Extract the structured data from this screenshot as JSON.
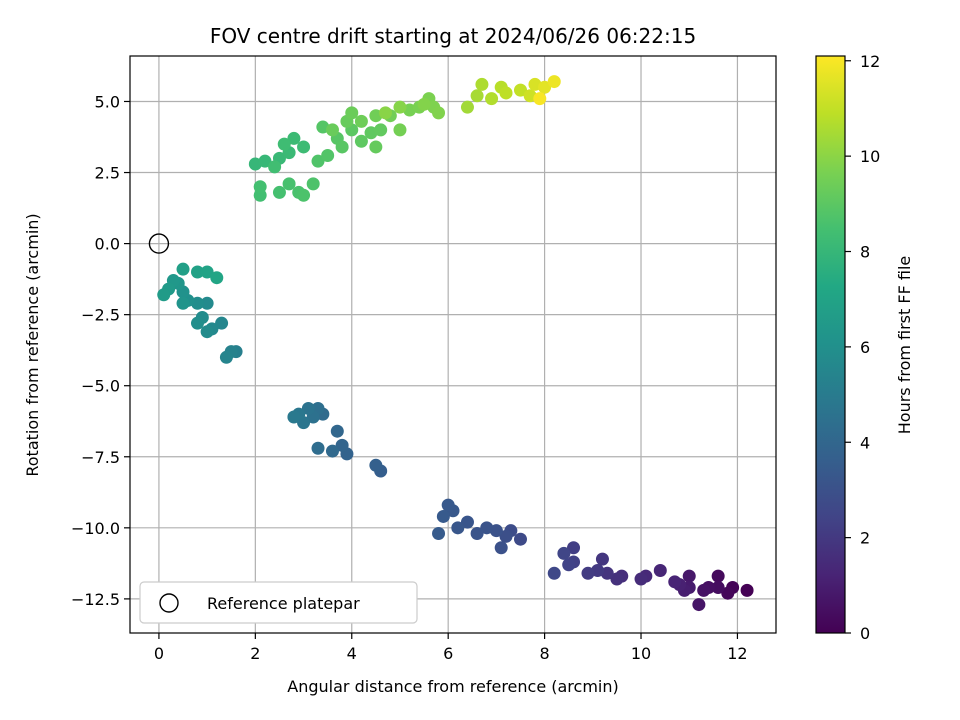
{
  "chart_data": {
    "type": "scatter",
    "title": "FOV centre drift starting at 2024/06/26 06:22:15",
    "xlabel": "Angular distance from reference (arcmin)",
    "ylabel": "Rotation from reference (arcmin)",
    "xlim": [
      -0.6,
      12.8
    ],
    "ylim": [
      -13.7,
      6.6
    ],
    "xticks": [
      0,
      2,
      4,
      6,
      8,
      10,
      12
    ],
    "yticks": [
      5.0,
      2.5,
      0.0,
      -2.5,
      -5.0,
      -7.5,
      -10.0,
      -12.5
    ],
    "xtick_labels": [
      "0",
      "2",
      "4",
      "6",
      "8",
      "10",
      "12"
    ],
    "ytick_labels": [
      "5.0",
      "2.5",
      "0.0",
      "−2.5",
      "−5.0",
      "−7.5",
      "−10.0",
      "−12.5"
    ],
    "grid": true,
    "legend": {
      "placement": "lower-left",
      "entries": [
        "Reference platepar"
      ]
    },
    "reference_point": {
      "x": 0,
      "y": 0,
      "label": "Reference platepar"
    },
    "colorbar": {
      "label": "Hours from first FF file",
      "range": [
        0,
        12.1
      ],
      "ticks": [
        0,
        2,
        4,
        6,
        8,
        10,
        12
      ],
      "tick_labels": [
        "0",
        "2",
        "4",
        "6",
        "8",
        "10",
        "12"
      ],
      "colormap": "viridis"
    },
    "points": [
      [
        12.2,
        -12.2,
        0.0
      ],
      [
        11.9,
        -12.1,
        0.1
      ],
      [
        11.8,
        -12.3,
        0.2
      ],
      [
        11.6,
        -11.7,
        0.3
      ],
      [
        11.6,
        -12.1,
        0.4
      ],
      [
        11.4,
        -12.1,
        0.5
      ],
      [
        11.3,
        -12.2,
        0.6
      ],
      [
        11.2,
        -12.7,
        0.7
      ],
      [
        11.0,
        -11.7,
        0.8
      ],
      [
        11.0,
        -12.1,
        0.9
      ],
      [
        10.9,
        -12.2,
        1.0
      ],
      [
        10.8,
        -12.0,
        1.1
      ],
      [
        10.7,
        -11.9,
        1.2
      ],
      [
        10.4,
        -11.5,
        1.3
      ],
      [
        10.1,
        -11.7,
        1.4
      ],
      [
        10.0,
        -11.8,
        1.5
      ],
      [
        9.6,
        -11.7,
        1.6
      ],
      [
        9.5,
        -11.8,
        1.7
      ],
      [
        9.3,
        -11.6,
        1.8
      ],
      [
        9.2,
        -11.1,
        1.9
      ],
      [
        9.1,
        -11.5,
        2.0
      ],
      [
        8.9,
        -11.6,
        2.1
      ],
      [
        8.6,
        -10.7,
        2.2
      ],
      [
        8.6,
        -11.2,
        2.3
      ],
      [
        8.5,
        -11.3,
        2.4
      ],
      [
        8.4,
        -10.9,
        2.5
      ],
      [
        8.2,
        -11.6,
        2.6
      ],
      [
        7.5,
        -10.4,
        2.7
      ],
      [
        7.3,
        -10.1,
        2.8
      ],
      [
        7.2,
        -10.3,
        2.9
      ],
      [
        7.1,
        -10.7,
        3.0
      ],
      [
        7.0,
        -10.1,
        3.05
      ],
      [
        6.8,
        -10.0,
        3.1
      ],
      [
        6.6,
        -10.2,
        3.15
      ],
      [
        6.4,
        -9.8,
        3.2
      ],
      [
        6.2,
        -10.0,
        3.25
      ],
      [
        6.1,
        -9.4,
        3.3
      ],
      [
        6.0,
        -9.2,
        3.35
      ],
      [
        5.9,
        -9.6,
        3.4
      ],
      [
        5.8,
        -10.2,
        3.45
      ],
      [
        4.6,
        -8.0,
        3.6
      ],
      [
        4.5,
        -7.8,
        3.7
      ],
      [
        3.9,
        -7.4,
        3.8
      ],
      [
        3.8,
        -7.1,
        3.9
      ],
      [
        3.7,
        -6.6,
        4.0
      ],
      [
        3.6,
        -7.3,
        4.1
      ],
      [
        3.4,
        -6.0,
        4.2
      ],
      [
        3.3,
        -7.2,
        4.3
      ],
      [
        3.3,
        -5.8,
        4.4
      ],
      [
        3.2,
        -6.1,
        4.5
      ],
      [
        3.1,
        -5.8,
        4.6
      ],
      [
        3.0,
        -6.3,
        4.7
      ],
      [
        2.9,
        -6.0,
        4.8
      ],
      [
        2.8,
        -6.1,
        4.9
      ],
      [
        1.6,
        -3.8,
        5.2
      ],
      [
        1.5,
        -3.8,
        5.3
      ],
      [
        1.4,
        -4.0,
        5.4
      ],
      [
        1.3,
        -2.8,
        5.5
      ],
      [
        1.1,
        -3.0,
        5.6
      ],
      [
        1.0,
        -2.1,
        5.7
      ],
      [
        1.0,
        -3.1,
        5.75
      ],
      [
        0.9,
        -2.6,
        5.8
      ],
      [
        0.8,
        -2.1,
        5.85
      ],
      [
        0.8,
        -2.8,
        5.9
      ],
      [
        0.6,
        -2.0,
        6.0
      ],
      [
        0.5,
        -1.7,
        6.1
      ],
      [
        0.5,
        -2.1,
        6.2
      ],
      [
        0.4,
        -1.4,
        6.3
      ],
      [
        0.3,
        -1.3,
        6.4
      ],
      [
        0.2,
        -1.6,
        6.5
      ],
      [
        0.1,
        -1.8,
        6.6
      ],
      [
        0.5,
        -0.9,
        6.8
      ],
      [
        0.8,
        -1.0,
        6.9
      ],
      [
        1.0,
        -1.0,
        7.0
      ],
      [
        1.2,
        -1.2,
        7.1
      ],
      [
        2.0,
        2.8,
        8.0
      ],
      [
        2.2,
        2.9,
        8.05
      ],
      [
        2.5,
        3.0,
        8.1
      ],
      [
        2.7,
        3.2,
        8.15
      ],
      [
        2.8,
        3.7,
        8.2
      ],
      [
        3.0,
        3.4,
        8.25
      ],
      [
        2.6,
        3.5,
        8.3
      ],
      [
        2.4,
        2.7,
        8.35
      ],
      [
        2.1,
        1.7,
        8.4
      ],
      [
        2.1,
        2.0,
        8.45
      ],
      [
        2.5,
        1.8,
        8.5
      ],
      [
        2.7,
        2.1,
        8.55
      ],
      [
        2.9,
        1.8,
        8.6
      ],
      [
        3.0,
        1.7,
        8.65
      ],
      [
        3.2,
        2.1,
        8.7
      ],
      [
        3.3,
        2.9,
        8.75
      ],
      [
        3.5,
        3.1,
        8.8
      ],
      [
        3.4,
        4.1,
        8.85
      ],
      [
        3.7,
        3.7,
        8.9
      ],
      [
        3.8,
        3.4,
        8.95
      ],
      [
        4.0,
        4.0,
        9.0
      ],
      [
        4.2,
        3.6,
        9.05
      ],
      [
        4.4,
        3.9,
        9.1
      ],
      [
        4.6,
        4.0,
        9.15
      ],
      [
        4.5,
        3.4,
        9.2
      ],
      [
        3.9,
        4.3,
        9.25
      ],
      [
        3.6,
        4.0,
        9.3
      ],
      [
        4.0,
        4.6,
        9.35
      ],
      [
        4.2,
        4.3,
        9.4
      ],
      [
        4.5,
        4.5,
        9.45
      ],
      [
        4.8,
        4.5,
        9.5
      ],
      [
        5.0,
        4.0,
        9.55
      ],
      [
        5.2,
        4.7,
        9.6
      ],
      [
        5.4,
        4.8,
        9.65
      ],
      [
        5.6,
        5.1,
        9.7
      ],
      [
        5.7,
        4.8,
        9.75
      ],
      [
        5.8,
        4.6,
        9.8
      ],
      [
        5.5,
        4.9,
        9.85
      ],
      [
        5.0,
        4.8,
        9.9
      ],
      [
        4.7,
        4.6,
        9.95
      ],
      [
        6.4,
        4.8,
        10.4
      ],
      [
        6.6,
        5.2,
        10.5
      ],
      [
        6.7,
        5.6,
        10.6
      ],
      [
        6.9,
        5.1,
        10.7
      ],
      [
        7.1,
        5.5,
        10.8
      ],
      [
        7.2,
        5.3,
        10.9
      ],
      [
        7.5,
        5.4,
        11.0
      ],
      [
        7.7,
        5.2,
        11.2
      ],
      [
        7.8,
        5.6,
        11.4
      ],
      [
        8.0,
        5.5,
        11.6
      ],
      [
        8.2,
        5.7,
        11.8
      ],
      [
        7.9,
        5.1,
        12.0
      ]
    ]
  }
}
